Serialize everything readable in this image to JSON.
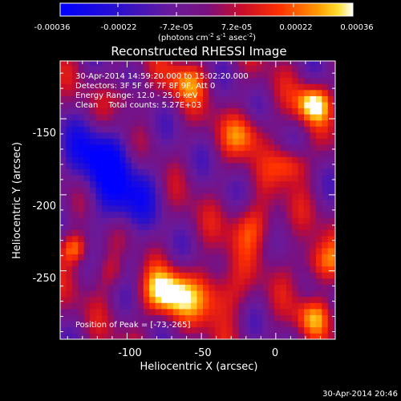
{
  "colorbar": {
    "ticks": [
      "-0.00036",
      "-0.00022",
      "-7.2e-05",
      "7.2e-05",
      "0.00022",
      "0.00036"
    ],
    "unit_label": "(photons cm",
    "unit_exp1": "-2",
    "unit_mid1": " s",
    "unit_exp2": "-1",
    "unit_mid2": " asec",
    "unit_exp3": "-2",
    "unit_close": ")",
    "range": [
      -0.00036,
      0.00036
    ]
  },
  "overlay": {
    "line1": "30-Apr-2014 14:59:20.000 to 15:02:20.000",
    "line2": "Detectors: 3F 5F 6F 7F 8F 9F, Att 0",
    "line3": "Energy Range: 12.0 - 25.0 keV",
    "line4": "Clean    Total counts: 5.27E+03",
    "peak": "Position of Peak = [-73,-265]"
  },
  "footer": {
    "timestamp": "30-Apr-2014 20:46"
  },
  "chart_data": {
    "type": "heatmap",
    "title": "Reconstructed RHESSI Image",
    "xlabel": "Heliocentric X (arcsec)",
    "ylabel": "Heliocentric Y (arcsec)",
    "xticks": [
      -100,
      -50,
      0
    ],
    "yticks": [
      -150,
      -200,
      -250
    ],
    "xlim": [
      -145,
      40
    ],
    "ylim": [
      -295,
      -112
    ],
    "peak_position": [
      -73,
      -265
    ],
    "grid": false,
    "legend": "colorbar-top"
  }
}
